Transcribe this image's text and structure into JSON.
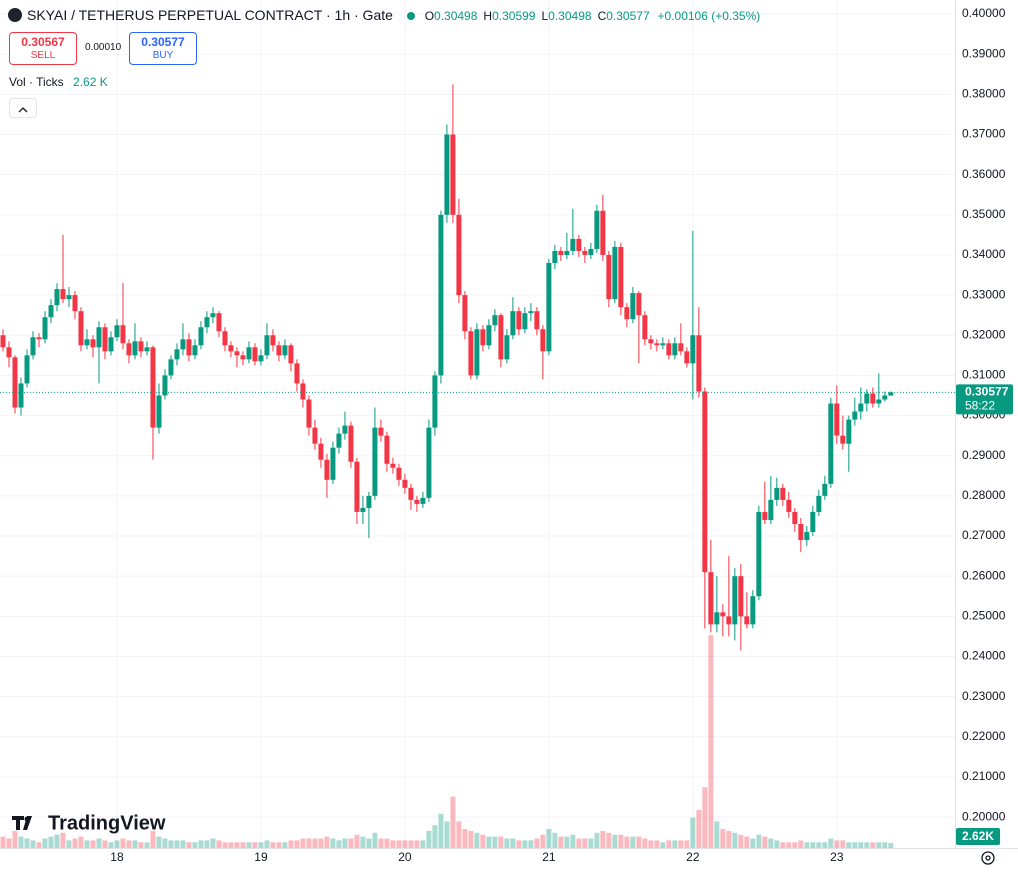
{
  "header": {
    "symbol": "SKYAI / TETHERUS PERPETUAL CONTRACT · 1h · Gate",
    "ohlc": [
      {
        "key": "O",
        "value": "0.30498"
      },
      {
        "key": "H",
        "value": "0.30599"
      },
      {
        "key": "L",
        "value": "0.30498"
      },
      {
        "key": "C",
        "value": "0.30577"
      }
    ],
    "change": "+0.00106 (+0.35%)",
    "sell_price": "0.30567",
    "sell_label": "SELL",
    "spread": "0.00010",
    "buy_price": "0.30577",
    "buy_label": "BUY",
    "volume_title": "Vol · Ticks",
    "volume_value": "2.62 K"
  },
  "price_tag": {
    "price": "0.30577",
    "countdown": "58:22"
  },
  "volume_tag": "2.62K",
  "logo": "TradingView",
  "chart_data": {
    "type": "candlestick",
    "up_color": "#089981",
    "down_color": "#f23645",
    "grid": true,
    "xlim": [
      -0.5,
      158.7
    ],
    "ylim": [
      0.1923,
      0.4035
    ],
    "xticks": [
      {
        "value": 19,
        "label": "18"
      },
      {
        "value": 43,
        "label": "19"
      },
      {
        "value": 67,
        "label": "20"
      },
      {
        "value": 91,
        "label": "21"
      },
      {
        "value": 115,
        "label": "22"
      },
      {
        "value": 139,
        "label": "23"
      }
    ],
    "yticks": [
      {
        "value": 0.2,
        "label": "0.20000"
      },
      {
        "value": 0.21,
        "label": "0.21000"
      },
      {
        "value": 0.22,
        "label": "0.22000"
      },
      {
        "value": 0.23,
        "label": "0.23000"
      },
      {
        "value": 0.24,
        "label": "0.24000"
      },
      {
        "value": 0.25,
        "label": "0.25000"
      },
      {
        "value": 0.26,
        "label": "0.26000"
      },
      {
        "value": 0.27,
        "label": "0.27000"
      },
      {
        "value": 0.28,
        "label": "0.28000"
      },
      {
        "value": 0.29,
        "label": "0.29000"
      },
      {
        "value": 0.3,
        "label": "0.30000"
      },
      {
        "value": 0.31,
        "label": "0.31000"
      },
      {
        "value": 0.32,
        "label": "0.32000"
      },
      {
        "value": 0.33,
        "label": "0.33000"
      },
      {
        "value": 0.34,
        "label": "0.34000"
      },
      {
        "value": 0.35,
        "label": "0.35000"
      },
      {
        "value": 0.36,
        "label": "0.36000"
      },
      {
        "value": 0.37,
        "label": "0.37000"
      },
      {
        "value": 0.38,
        "label": "0.38000"
      },
      {
        "value": 0.39,
        "label": "0.39000"
      },
      {
        "value": 0.4,
        "label": "0.40000"
      }
    ],
    "candles": [
      [
        0.32,
        0.3215,
        0.316,
        0.317,
        6
      ],
      [
        0.317,
        0.3185,
        0.312,
        0.3145,
        5
      ],
      [
        0.3145,
        0.315,
        0.3005,
        0.302,
        9
      ],
      [
        0.302,
        0.3095,
        0.3,
        0.308,
        6
      ],
      [
        0.308,
        0.3165,
        0.307,
        0.315,
        5
      ],
      [
        0.315,
        0.321,
        0.314,
        0.3195,
        4
      ],
      [
        0.3195,
        0.3205,
        0.317,
        0.319,
        3
      ],
      [
        0.319,
        0.326,
        0.318,
        0.3245,
        5
      ],
      [
        0.3245,
        0.329,
        0.323,
        0.3275,
        6
      ],
      [
        0.3275,
        0.333,
        0.326,
        0.3315,
        7
      ],
      [
        0.3315,
        0.345,
        0.328,
        0.329,
        8
      ],
      [
        0.329,
        0.332,
        0.327,
        0.33,
        4
      ],
      [
        0.33,
        0.331,
        0.324,
        0.326,
        5
      ],
      [
        0.326,
        0.327,
        0.316,
        0.3175,
        6
      ],
      [
        0.3175,
        0.3215,
        0.3165,
        0.319,
        4
      ],
      [
        0.319,
        0.32,
        0.3145,
        0.317,
        4
      ],
      [
        0.317,
        0.3235,
        0.308,
        0.322,
        5
      ],
      [
        0.322,
        0.323,
        0.314,
        0.316,
        4
      ],
      [
        0.316,
        0.321,
        0.315,
        0.3195,
        3
      ],
      [
        0.3195,
        0.324,
        0.3185,
        0.3225,
        4
      ],
      [
        0.3225,
        0.333,
        0.3165,
        0.318,
        5
      ],
      [
        0.318,
        0.319,
        0.313,
        0.315,
        4
      ],
      [
        0.315,
        0.323,
        0.314,
        0.3185,
        4
      ],
      [
        0.3185,
        0.3195,
        0.3145,
        0.316,
        3
      ],
      [
        0.316,
        0.3185,
        0.315,
        0.317,
        3
      ],
      [
        0.317,
        0.3175,
        0.289,
        0.297,
        9
      ],
      [
        0.297,
        0.308,
        0.2955,
        0.305,
        6
      ],
      [
        0.305,
        0.3115,
        0.304,
        0.31,
        5
      ],
      [
        0.31,
        0.315,
        0.309,
        0.314,
        4
      ],
      [
        0.314,
        0.318,
        0.3125,
        0.3165,
        4
      ],
      [
        0.3165,
        0.323,
        0.315,
        0.319,
        4
      ],
      [
        0.319,
        0.3205,
        0.3135,
        0.315,
        3
      ],
      [
        0.315,
        0.319,
        0.314,
        0.3175,
        3
      ],
      [
        0.3175,
        0.3235,
        0.3165,
        0.322,
        4
      ],
      [
        0.322,
        0.326,
        0.3205,
        0.3245,
        4
      ],
      [
        0.3245,
        0.327,
        0.323,
        0.3255,
        5
      ],
      [
        0.3255,
        0.326,
        0.3195,
        0.321,
        4
      ],
      [
        0.321,
        0.322,
        0.316,
        0.3175,
        3
      ],
      [
        0.3175,
        0.3185,
        0.3145,
        0.316,
        3
      ],
      [
        0.316,
        0.317,
        0.312,
        0.315,
        3
      ],
      [
        0.315,
        0.316,
        0.3125,
        0.314,
        3
      ],
      [
        0.314,
        0.3185,
        0.313,
        0.317,
        3
      ],
      [
        0.317,
        0.318,
        0.3125,
        0.3135,
        3
      ],
      [
        0.3135,
        0.3165,
        0.3125,
        0.315,
        3
      ],
      [
        0.315,
        0.323,
        0.314,
        0.32,
        4
      ],
      [
        0.32,
        0.3215,
        0.316,
        0.3175,
        3
      ],
      [
        0.3175,
        0.3185,
        0.3135,
        0.315,
        3
      ],
      [
        0.315,
        0.319,
        0.314,
        0.3175,
        3
      ],
      [
        0.3175,
        0.318,
        0.311,
        0.313,
        4
      ],
      [
        0.313,
        0.314,
        0.306,
        0.308,
        4
      ],
      [
        0.308,
        0.309,
        0.302,
        0.304,
        5
      ],
      [
        0.304,
        0.305,
        0.295,
        0.297,
        5
      ],
      [
        0.297,
        0.299,
        0.2915,
        0.293,
        5
      ],
      [
        0.293,
        0.2945,
        0.287,
        0.289,
        5
      ],
      [
        0.289,
        0.2905,
        0.2795,
        0.284,
        6
      ],
      [
        0.284,
        0.2935,
        0.283,
        0.292,
        5
      ],
      [
        0.292,
        0.297,
        0.2905,
        0.2955,
        4
      ],
      [
        0.2955,
        0.301,
        0.294,
        0.2975,
        5
      ],
      [
        0.2975,
        0.2985,
        0.287,
        0.2885,
        5
      ],
      [
        0.2885,
        0.2895,
        0.273,
        0.276,
        7
      ],
      [
        0.276,
        0.28,
        0.273,
        0.277,
        6
      ],
      [
        0.277,
        0.281,
        0.2695,
        0.28,
        5
      ],
      [
        0.28,
        0.302,
        0.279,
        0.297,
        8
      ],
      [
        0.297,
        0.299,
        0.2935,
        0.295,
        5
      ],
      [
        0.295,
        0.296,
        0.286,
        0.288,
        5
      ],
      [
        0.288,
        0.2895,
        0.2855,
        0.287,
        4
      ],
      [
        0.287,
        0.288,
        0.2825,
        0.284,
        4
      ],
      [
        0.284,
        0.2855,
        0.2805,
        0.282,
        4
      ],
      [
        0.282,
        0.283,
        0.2765,
        0.279,
        4
      ],
      [
        0.279,
        0.28,
        0.276,
        0.278,
        4
      ],
      [
        0.278,
        0.281,
        0.277,
        0.2795,
        4
      ],
      [
        0.2795,
        0.299,
        0.2785,
        0.297,
        9
      ],
      [
        0.297,
        0.311,
        0.295,
        0.31,
        12
      ],
      [
        0.31,
        0.351,
        0.308,
        0.35,
        18
      ],
      [
        0.35,
        0.3725,
        0.348,
        0.37,
        14
      ],
      [
        0.37,
        0.3825,
        0.348,
        0.35,
        27
      ],
      [
        0.35,
        0.354,
        0.328,
        0.33,
        14
      ],
      [
        0.33,
        0.331,
        0.319,
        0.321,
        10
      ],
      [
        0.321,
        0.322,
        0.309,
        0.31,
        9
      ],
      [
        0.31,
        0.323,
        0.309,
        0.3215,
        8
      ],
      [
        0.3215,
        0.3225,
        0.316,
        0.3175,
        7
      ],
      [
        0.3175,
        0.324,
        0.3165,
        0.3225,
        6
      ],
      [
        0.3225,
        0.3265,
        0.321,
        0.325,
        6
      ],
      [
        0.325,
        0.3255,
        0.312,
        0.314,
        6
      ],
      [
        0.314,
        0.3215,
        0.313,
        0.32,
        5
      ],
      [
        0.32,
        0.3295,
        0.319,
        0.326,
        5
      ],
      [
        0.326,
        0.327,
        0.32,
        0.3215,
        4
      ],
      [
        0.3215,
        0.327,
        0.3205,
        0.3255,
        4
      ],
      [
        0.3255,
        0.328,
        0.3235,
        0.326,
        4
      ],
      [
        0.326,
        0.327,
        0.32,
        0.3215,
        5
      ],
      [
        0.3215,
        0.3225,
        0.309,
        0.316,
        7
      ],
      [
        0.316,
        0.339,
        0.315,
        0.338,
        10
      ],
      [
        0.338,
        0.3425,
        0.3365,
        0.341,
        8
      ],
      [
        0.341,
        0.342,
        0.3385,
        0.34,
        6
      ],
      [
        0.34,
        0.3455,
        0.339,
        0.341,
        6
      ],
      [
        0.341,
        0.3515,
        0.34,
        0.344,
        7
      ],
      [
        0.344,
        0.345,
        0.3395,
        0.341,
        5
      ],
      [
        0.341,
        0.342,
        0.338,
        0.34,
        5
      ],
      [
        0.34,
        0.343,
        0.339,
        0.3415,
        5
      ],
      [
        0.3415,
        0.3525,
        0.3405,
        0.351,
        8
      ],
      [
        0.351,
        0.355,
        0.3385,
        0.34,
        9
      ],
      [
        0.34,
        0.341,
        0.327,
        0.329,
        8
      ],
      [
        0.329,
        0.3435,
        0.328,
        0.342,
        7
      ],
      [
        0.342,
        0.343,
        0.325,
        0.327,
        7
      ],
      [
        0.327,
        0.328,
        0.322,
        0.324,
        6
      ],
      [
        0.324,
        0.332,
        0.323,
        0.3305,
        6
      ],
      [
        0.3305,
        0.331,
        0.313,
        0.325,
        6
      ],
      [
        0.325,
        0.326,
        0.3175,
        0.319,
        5
      ],
      [
        0.319,
        0.32,
        0.3165,
        0.318,
        4
      ],
      [
        0.318,
        0.319,
        0.316,
        0.3175,
        4
      ],
      [
        0.3175,
        0.3195,
        0.3165,
        0.318,
        3
      ],
      [
        0.318,
        0.319,
        0.314,
        0.315,
        4
      ],
      [
        0.315,
        0.3195,
        0.314,
        0.318,
        4
      ],
      [
        0.318,
        0.323,
        0.315,
        0.316,
        4
      ],
      [
        0.316,
        0.317,
        0.312,
        0.313,
        4
      ],
      [
        0.313,
        0.346,
        0.304,
        0.32,
        16
      ],
      [
        0.32,
        0.327,
        0.3045,
        0.306,
        20
      ],
      [
        0.306,
        0.307,
        0.247,
        0.261,
        32
      ],
      [
        0.261,
        0.269,
        0.246,
        0.248,
        112
      ],
      [
        0.248,
        0.26,
        0.246,
        0.251,
        14
      ],
      [
        0.251,
        0.253,
        0.245,
        0.25,
        10
      ],
      [
        0.25,
        0.265,
        0.245,
        0.248,
        9
      ],
      [
        0.248,
        0.262,
        0.244,
        0.26,
        8
      ],
      [
        0.26,
        0.263,
        0.2415,
        0.25,
        7
      ],
      [
        0.25,
        0.256,
        0.247,
        0.248,
        6
      ],
      [
        0.248,
        0.2565,
        0.247,
        0.255,
        5
      ],
      [
        0.255,
        0.2775,
        0.254,
        0.276,
        7
      ],
      [
        0.276,
        0.2835,
        0.273,
        0.274,
        6
      ],
      [
        0.274,
        0.285,
        0.273,
        0.279,
        5
      ],
      [
        0.279,
        0.2845,
        0.2775,
        0.282,
        4
      ],
      [
        0.282,
        0.283,
        0.2775,
        0.279,
        3
      ],
      [
        0.279,
        0.281,
        0.2745,
        0.276,
        3
      ],
      [
        0.276,
        0.277,
        0.271,
        0.273,
        3
      ],
      [
        0.273,
        0.2745,
        0.266,
        0.269,
        4
      ],
      [
        0.269,
        0.2725,
        0.2675,
        0.271,
        3
      ],
      [
        0.271,
        0.2775,
        0.27,
        0.276,
        3
      ],
      [
        0.276,
        0.2815,
        0.275,
        0.28,
        3
      ],
      [
        0.28,
        0.285,
        0.279,
        0.283,
        3
      ],
      [
        0.283,
        0.3045,
        0.282,
        0.303,
        5
      ],
      [
        0.303,
        0.3075,
        0.293,
        0.295,
        4
      ],
      [
        0.295,
        0.3,
        0.2915,
        0.293,
        4
      ],
      [
        0.293,
        0.3,
        0.286,
        0.299,
        3
      ],
      [
        0.299,
        0.3045,
        0.2975,
        0.301,
        3
      ],
      [
        0.301,
        0.307,
        0.299,
        0.303,
        3
      ],
      [
        0.303,
        0.3065,
        0.301,
        0.3055,
        3
      ],
      [
        0.3055,
        0.307,
        0.302,
        0.303,
        3
      ],
      [
        0.303,
        0.3105,
        0.302,
        0.304,
        3
      ],
      [
        0.304,
        0.306,
        0.3035,
        0.305,
        3
      ],
      [
        0.30498,
        0.30599,
        0.30498,
        0.30577,
        2.62
      ]
    ]
  }
}
